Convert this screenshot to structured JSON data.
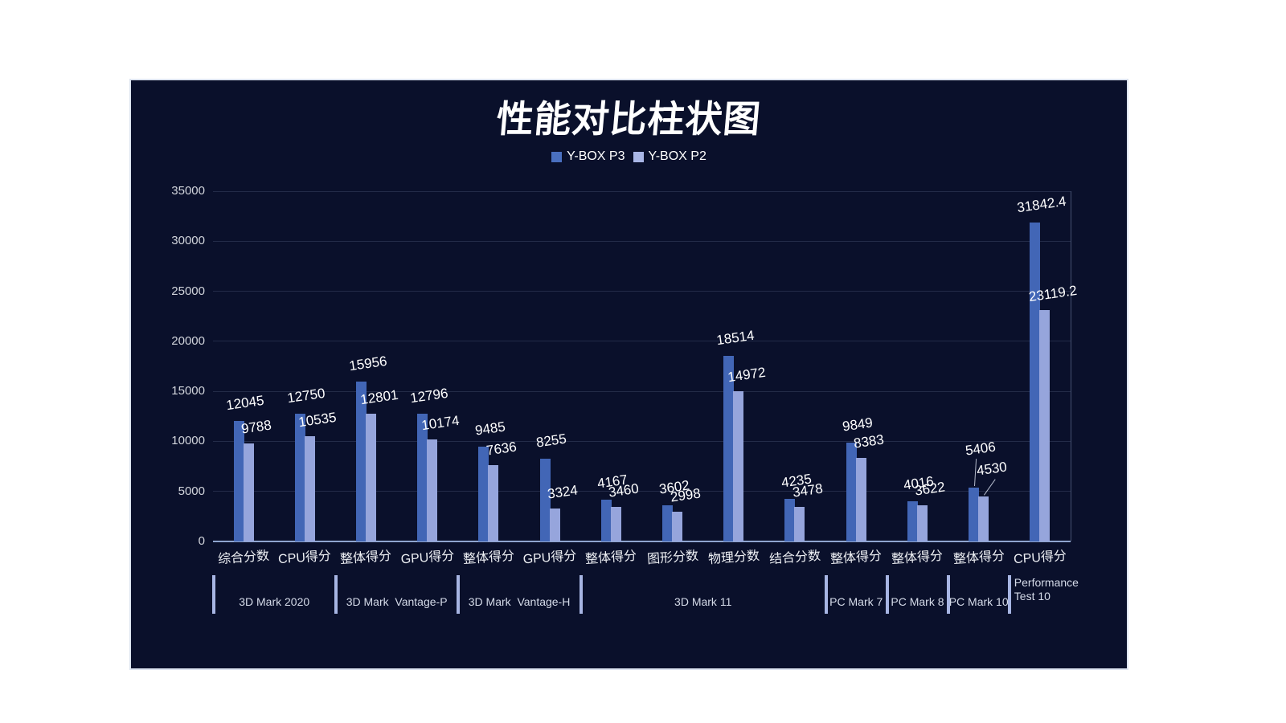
{
  "title": "性能对比柱状图",
  "legend": {
    "items": [
      {
        "label": "Y-BOX P3",
        "swatch_color": "#4a70c0"
      },
      {
        "label": "Y-BOX P2",
        "swatch_color": "#a9b6e6"
      }
    ]
  },
  "chart_data": {
    "type": "bar",
    "title": "性能对比柱状图",
    "categories": [
      "综合分数",
      "CPU得分",
      "整体得分",
      "GPU得分",
      "整体得分",
      "GPU得分",
      "整体得分",
      "图形分数",
      "物理分数",
      "结合分数",
      "整体得分",
      "整体得分",
      "整体得分",
      "CPU得分"
    ],
    "series": [
      {
        "name": "Y-BOX P3",
        "color": "#4266b6",
        "values": [
          12045,
          12750,
          15956,
          12796,
          9485,
          8255,
          4167,
          3602,
          18514,
          4235,
          9849,
          4016,
          5406,
          31842.4
        ]
      },
      {
        "name": "Y-BOX P2",
        "color": "#96a5dc",
        "values": [
          9788,
          10535,
          12801,
          10174,
          7636,
          3324,
          3460,
          2998,
          14972,
          3478,
          8383,
          3622,
          4530,
          23119.2
        ]
      }
    ],
    "groups": [
      {
        "label": "3D Mark 2020",
        "start": 0,
        "end": 2
      },
      {
        "label": "3D Mark  Vantage-P",
        "start": 2,
        "end": 4
      },
      {
        "label": "3D Mark  Vantage-H",
        "start": 4,
        "end": 6
      },
      {
        "label": "3D Mark 11",
        "start": 6,
        "end": 10
      },
      {
        "label": "PC Mark 7",
        "start": 10,
        "end": 11
      },
      {
        "label": "PC Mark 8",
        "start": 11,
        "end": 12
      },
      {
        "label": "PC Mark 10",
        "start": 12,
        "end": 13
      },
      {
        "label": "Performance Test 10",
        "start": 13,
        "end": 14,
        "wrap": true
      }
    ],
    "y_axis": {
      "min": 0,
      "max": 35000,
      "step": 5000,
      "tick_labels": [
        "0",
        "5000",
        "10000",
        "15000",
        "20000",
        "25000",
        "30000",
        "35000"
      ]
    },
    "grid": true,
    "legend_position": "top-center",
    "leader_line_category_index": 12,
    "colors": {
      "panel_bg": "#0a102b",
      "series_p3": "#4266b6",
      "series_p2": "#96a5dc",
      "gridline": "rgba(168,188,226,0.16)",
      "gridline_bright": "rgba(168,188,226,0.38)",
      "axis_line": "#8fa5cf",
      "tick_label": "#d2d5dc",
      "category_label": "#eef0f4",
      "data_label": "#ffffff",
      "group_label": "#d5dbe9",
      "separator": "#a7b5e3",
      "leader_line": "#c8cede"
    }
  }
}
